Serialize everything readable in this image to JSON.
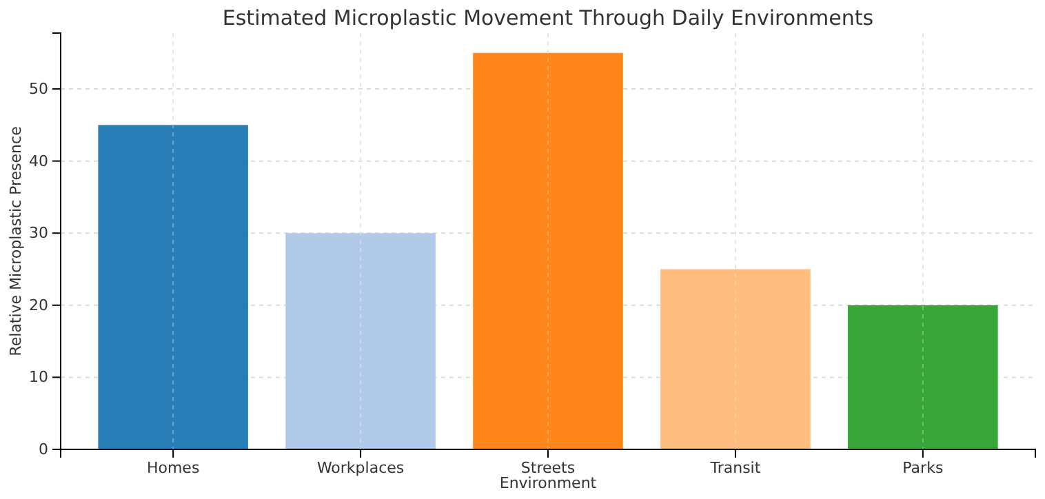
{
  "chart_data": {
    "type": "bar",
    "title": "Estimated Microplastic Movement Through Daily Environments",
    "xlabel": "Environment",
    "ylabel": "Relative Microplastic Presence",
    "categories": [
      "Homes",
      "Workplaces",
      "Streets",
      "Transit",
      "Parks"
    ],
    "values": [
      45,
      30,
      55,
      25,
      20
    ],
    "colors": [
      "#1f77b4",
      "#aec7e8",
      "#ff7f0e",
      "#ffbb78",
      "#2ca02c"
    ],
    "ylim": [
      0,
      57.75
    ],
    "yticks": [
      0,
      10,
      20,
      30,
      40,
      50
    ],
    "grid": true
  }
}
